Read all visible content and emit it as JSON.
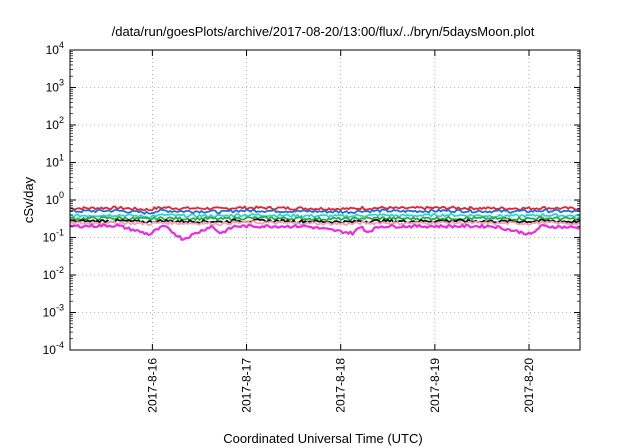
{
  "chart_data": {
    "type": "line",
    "title": "/data/run/goesPlots/archive/2017-08-20/13:00/flux/../bryn/5daysMoon.plot",
    "xlabel": "Coordinated Universal Time (UTC)",
    "ylabel": "cSv/day",
    "yscale": "log",
    "ylim": [
      0.0001,
      10000
    ],
    "xlim": [
      "2017-08-15 03:00",
      "2017-08-20 13:00"
    ],
    "grid": true,
    "legend": "none",
    "x_ticks": [
      "2017-8-16",
      "2017-8-17",
      "2017-8-18",
      "2017-8-19",
      "2017-8-20"
    ],
    "y_ticks": [
      {
        "base": "10",
        "exp": "-4"
      },
      {
        "base": "10",
        "exp": "-3"
      },
      {
        "base": "10",
        "exp": "-2"
      },
      {
        "base": "10",
        "exp": "-1"
      },
      {
        "base": "10",
        "exp": "0"
      },
      {
        "base": "10",
        "exp": "1"
      },
      {
        "base": "10",
        "exp": "2"
      },
      {
        "base": "10",
        "exp": "3"
      },
      {
        "base": "10",
        "exp": "4"
      }
    ],
    "x_days": [
      0,
      0.5,
      0.85,
      0.9,
      1.0,
      1.2,
      1.5,
      1.6,
      1.75,
      2.0,
      2.5,
      3.0,
      3.1,
      3.15,
      3.3,
      3.5,
      4.0,
      4.5,
      4.9,
      5.0,
      5.5
    ],
    "series": [
      {
        "color": "#e8232a",
        "values": [
          0.6,
          0.62,
          0.55,
          0.6,
          0.63,
          0.6,
          0.6,
          0.58,
          0.62,
          0.62,
          0.6,
          0.58,
          0.62,
          0.6,
          0.62,
          0.6,
          0.62,
          0.6,
          0.6,
          0.62,
          0.58
        ]
      },
      {
        "color": "#1a6fe0",
        "values": [
          0.5,
          0.52,
          0.45,
          0.5,
          0.52,
          0.5,
          0.5,
          0.47,
          0.52,
          0.52,
          0.5,
          0.48,
          0.52,
          0.5,
          0.52,
          0.5,
          0.52,
          0.5,
          0.5,
          0.52,
          0.48
        ]
      },
      {
        "color": "#2fd6c8",
        "values": [
          0.38,
          0.4,
          0.36,
          0.38,
          0.4,
          0.38,
          0.38,
          0.37,
          0.4,
          0.4,
          0.38,
          0.37,
          0.4,
          0.38,
          0.4,
          0.38,
          0.4,
          0.38,
          0.38,
          0.4,
          0.37
        ]
      },
      {
        "color": "#2ea84a",
        "values": [
          0.32,
          0.33,
          0.31,
          0.32,
          0.33,
          0.32,
          0.32,
          0.31,
          0.33,
          0.33,
          0.32,
          0.31,
          0.33,
          0.32,
          0.33,
          0.32,
          0.33,
          0.32,
          0.32,
          0.33,
          0.31
        ]
      },
      {
        "color": "#111111",
        "values": [
          0.27,
          0.28,
          0.26,
          0.27,
          0.28,
          0.27,
          0.27,
          0.26,
          0.28,
          0.28,
          0.27,
          0.26,
          0.28,
          0.27,
          0.28,
          0.27,
          0.28,
          0.27,
          0.27,
          0.28,
          0.26
        ]
      },
      {
        "color": "#f2a0b4",
        "values": [
          0.24,
          0.25,
          0.23,
          0.24,
          0.25,
          0.24,
          0.24,
          0.23,
          0.25,
          0.25,
          0.24,
          0.23,
          0.25,
          0.24,
          0.25,
          0.24,
          0.25,
          0.24,
          0.24,
          0.25,
          0.23
        ]
      },
      {
        "color": "#e62ee0",
        "values": [
          0.2,
          0.21,
          0.12,
          0.15,
          0.2,
          0.09,
          0.2,
          0.13,
          0.2,
          0.2,
          0.2,
          0.13,
          0.2,
          0.14,
          0.2,
          0.2,
          0.2,
          0.2,
          0.12,
          0.2,
          0.18
        ]
      }
    ]
  }
}
